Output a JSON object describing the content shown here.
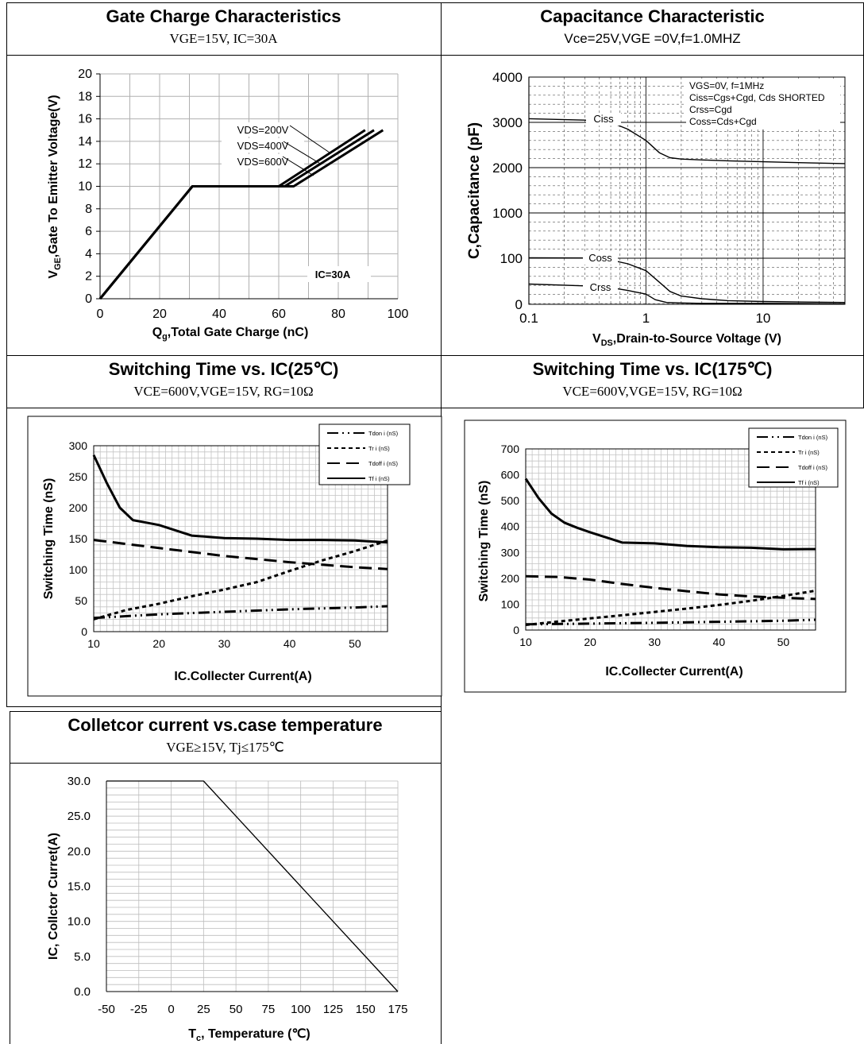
{
  "charts": [
    {
      "title": "Gate Charge Characteristics",
      "subtitle": "VGE=15V, IC=30A",
      "ylabel_pre": "V",
      "ylabel_sub": "GE",
      "ylabel_post": ",Gate To Emitter Voltage(V)",
      "xlabel_pre": "Q",
      "xlabel_sub": "g",
      "xlabel_post": ",Total Gate Charge (nC)",
      "annotation": "IC=30A"
    },
    {
      "title": "Capacitance Characteristic",
      "subtitle": "Vce=25V,VGE =0V,f=1.0MHZ",
      "ylabel": "C,Capacitance (pF)",
      "xlabel_pre": "V",
      "xlabel_sub": "DS",
      "xlabel_post": ",Drain-to-Source Voltage (V)",
      "notes": [
        "VGS=0V,  f=1MHz",
        "Ciss=Cgs+Cgd,  Cds SHORTED",
        "Crss=Cgd",
        "Coss=Cds+Cgd"
      ]
    },
    {
      "title": "Switching Time vs. IC(25℃)",
      "subtitle": "VCE=600V,VGE=15V, RG=10Ω",
      "ylabel": "Switching Time (nS)",
      "xlabel": "IC.Collecter Current(A)"
    },
    {
      "title": "Switching Time vs. IC(175℃)",
      "subtitle": "VCE=600V,VGE=15V, RG=10Ω",
      "ylabel": "Switching Time (nS)",
      "xlabel": "IC.Collecter Current(A)"
    },
    {
      "title": "Colletcor current vs.case temperature",
      "subtitle": "VGE≥15V,  Tj≤175℃",
      "ylabel": "IC, Collctor Curret(A)",
      "xlabel_pre": "T",
      "xlabel_sub": "c",
      "xlabel_post": ", Temperature  (℃)"
    }
  ],
  "chart_data": [
    {
      "type": "line",
      "xlim": [
        0,
        100
      ],
      "ylim": [
        0,
        20
      ],
      "x_ticks": [
        0,
        20,
        40,
        60,
        80,
        100
      ],
      "y_ticks": [
        0,
        2,
        4,
        6,
        8,
        10,
        12,
        14,
        16,
        18,
        20
      ],
      "grid": true,
      "series": [
        {
          "name": "VDS=200V",
          "x": [
            0,
            31,
            60,
            89
          ],
          "y": [
            0,
            10,
            10,
            15
          ]
        },
        {
          "name": "VDS=400V",
          "x": [
            0,
            31,
            62,
            92
          ],
          "y": [
            0,
            10,
            10,
            15
          ]
        },
        {
          "name": "VDS=600V",
          "x": [
            0,
            31,
            65,
            95
          ],
          "y": [
            0,
            10,
            10,
            15
          ]
        }
      ]
    },
    {
      "type": "line",
      "x_scale": "log",
      "xlim": [
        0.1,
        50
      ],
      "x_ticks": [
        0.1,
        1,
        10
      ],
      "y_tick_labels": [
        "0",
        "100",
        "1000",
        "2000",
        "3000",
        "4000"
      ],
      "grid": true,
      "series": [
        {
          "name": "Ciss",
          "x": [
            0.1,
            0.3,
            0.5,
            0.7,
            1.0,
            1.3,
            1.6,
            2,
            3,
            5,
            10,
            20,
            50
          ],
          "y": [
            3080,
            3050,
            3000,
            2850,
            2600,
            2330,
            2220,
            2190,
            2170,
            2150,
            2130,
            2110,
            2090
          ]
        },
        {
          "name": "Coss",
          "x": [
            0.1,
            0.3,
            0.5,
            0.7,
            1.0,
            1.3,
            1.6,
            2,
            3,
            5,
            10,
            20,
            50
          ],
          "y": [
            108,
            104,
            96,
            88,
            73,
            48,
            28,
            18,
            12,
            8,
            6,
            5,
            4
          ]
        },
        {
          "name": "Crss",
          "x": [
            0.1,
            0.3,
            0.5,
            0.7,
            1.0,
            1.2,
            1.5,
            2,
            3,
            5,
            10,
            50
          ],
          "y": [
            44,
            40,
            36,
            30,
            22,
            10,
            4,
            3,
            2,
            2,
            2,
            1
          ]
        }
      ]
    },
    {
      "type": "line",
      "xlim": [
        10,
        55
      ],
      "ylim": [
        0,
        300
      ],
      "x_ticks": [
        10,
        20,
        30,
        40,
        50
      ],
      "y_ticks": [
        0,
        50,
        100,
        150,
        200,
        250,
        300
      ],
      "legend": "top-right",
      "grid": true,
      "series": [
        {
          "name": "Tdon i (nS)",
          "style": "dashdotdot",
          "x": [
            10,
            20,
            30,
            40,
            50,
            55
          ],
          "y": [
            22,
            28,
            32,
            36,
            39,
            41
          ]
        },
        {
          "name": "Tr i (nS)",
          "style": "dotted",
          "x": [
            10,
            15,
            20,
            25,
            30,
            35,
            40,
            45,
            50,
            55
          ],
          "y": [
            20,
            35,
            45,
            57,
            68,
            80,
            98,
            115,
            130,
            147
          ]
        },
        {
          "name": "Tdoff i (nS)",
          "style": "dashed",
          "x": [
            10,
            20,
            30,
            40,
            50,
            55
          ],
          "y": [
            148,
            135,
            122,
            112,
            104,
            101
          ]
        },
        {
          "name": "Tf i (nS)",
          "style": "solid",
          "x": [
            10,
            12,
            14,
            16,
            18,
            20,
            25,
            30,
            35,
            40,
            45,
            50,
            55
          ],
          "y": [
            285,
            240,
            200,
            180,
            176,
            172,
            155,
            151,
            150,
            148,
            148,
            147,
            144
          ]
        }
      ]
    },
    {
      "type": "line",
      "xlim": [
        10,
        55
      ],
      "ylim": [
        0,
        700
      ],
      "x_ticks": [
        10,
        20,
        30,
        40,
        50
      ],
      "y_ticks": [
        0,
        100,
        200,
        300,
        400,
        500,
        600,
        700
      ],
      "legend": "top-right",
      "grid": true,
      "series": [
        {
          "name": "Tdon i (nS)",
          "style": "dashdotdot",
          "x": [
            10,
            20,
            30,
            40,
            50,
            55
          ],
          "y": [
            22,
            25,
            28,
            32,
            36,
            40
          ]
        },
        {
          "name": "Tr i (nS)",
          "style": "dotted",
          "x": [
            10,
            15,
            20,
            25,
            30,
            35,
            40,
            45,
            50,
            55
          ],
          "y": [
            20,
            33,
            45,
            57,
            70,
            83,
            97,
            113,
            132,
            152
          ]
        },
        {
          "name": "Tdoff i (nS)",
          "style": "dashed",
          "x": [
            10,
            15,
            20,
            25,
            30,
            35,
            40,
            45,
            50,
            55
          ],
          "y": [
            208,
            205,
            195,
            178,
            163,
            150,
            138,
            130,
            125,
            120
          ]
        },
        {
          "name": "Tf i (nS)",
          "style": "solid",
          "x": [
            10,
            12,
            14,
            16,
            18,
            20,
            25,
            30,
            35,
            40,
            45,
            50,
            55
          ],
          "y": [
            585,
            510,
            450,
            415,
            395,
            378,
            338,
            335,
            325,
            320,
            318,
            312,
            313
          ]
        }
      ]
    },
    {
      "type": "line",
      "xlim": [
        -50,
        175
      ],
      "ylim": [
        0,
        30
      ],
      "x_ticks": [
        -50,
        -25,
        0,
        25,
        50,
        75,
        100,
        125,
        150,
        175
      ],
      "y_ticks": [
        "0.0",
        "5.0",
        "10.0",
        "15.0",
        "20.0",
        "25.0",
        "30.0"
      ],
      "grid": true,
      "series": [
        {
          "x": [
            -50,
            25,
            175
          ],
          "y": [
            30,
            30,
            0
          ]
        }
      ]
    }
  ]
}
